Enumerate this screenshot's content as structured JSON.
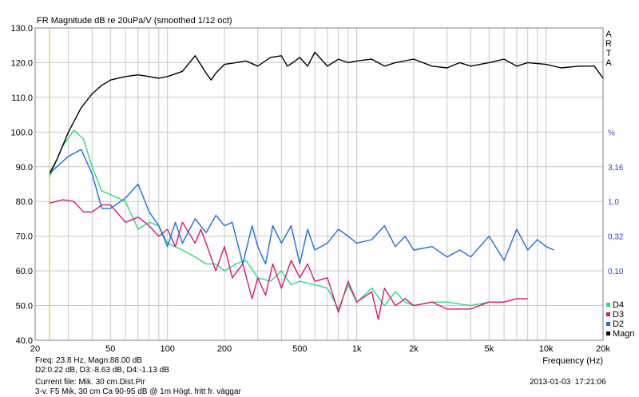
{
  "title": "FR Magnitude dB re 20uPa/V (smoothed 1/12 oct)",
  "brand_letters": [
    "A",
    "R",
    "T",
    "A"
  ],
  "colors": {
    "magn": "#000000",
    "d2": "#1a6fe0",
    "d3": "#e0127a",
    "d4": "#22e07a",
    "right_axis": "#2f3fd0",
    "grid": "#c8c8c8",
    "cursor": "#d8c400"
  },
  "info": {
    "readout": "Freq: 23.8 Hz, Magn:88.00 dB",
    "deltas": "D2:0.22 dB, D3:-8.63 dB, D4:-1.13 dB",
    "current_file": "Current file: Mik. 30 cm.Dist.Pir",
    "description": "3-v. F5 Mik. 30 cm Ca 90-95 dB @ 1m Högt. fritt fr. väggar",
    "timestamp": "2013-01-03  17:21:06"
  },
  "chart_data": {
    "type": "line",
    "title": "FR Magnitude dB re 20uPa/V (smoothed 1/12 oct)",
    "xlabel": "Frequency (Hz)",
    "xscale": "log",
    "xlim": [
      20,
      20000
    ],
    "ylim": [
      40,
      130
    ],
    "grid": true,
    "cursor_freq": 23.8,
    "x_ticks": [
      {
        "value": 20,
        "label": "20"
      },
      {
        "value": 50,
        "label": "50"
      },
      {
        "value": 100,
        "label": "100"
      },
      {
        "value": 200,
        "label": "200"
      },
      {
        "value": 500,
        "label": "500"
      },
      {
        "value": 1000,
        "label": "1k"
      },
      {
        "value": 2000,
        "label": "2k"
      },
      {
        "value": 5000,
        "label": "5k"
      },
      {
        "value": 10000,
        "label": "10k"
      },
      {
        "value": 20000,
        "label": "20k"
      }
    ],
    "y_ticks": [
      {
        "value": 130,
        "label": "130.0"
      },
      {
        "value": 120,
        "label": "120.0"
      },
      {
        "value": 110,
        "label": "110.0"
      },
      {
        "value": 100,
        "label": "100.0"
      },
      {
        "value": 90,
        "label": "90.0"
      },
      {
        "value": 80,
        "label": "80.0"
      },
      {
        "value": 70,
        "label": "70.0"
      },
      {
        "value": 60,
        "label": "60.0"
      },
      {
        "value": 50,
        "label": "50.0"
      },
      {
        "value": 40,
        "label": "40.0"
      }
    ],
    "right_ticks": [
      {
        "at_db": 100,
        "label": "%"
      },
      {
        "at_db": 90,
        "label": "3,16"
      },
      {
        "at_db": 80,
        "label": "1,0"
      },
      {
        "at_db": 70,
        "label": "0,32"
      },
      {
        "at_db": 60,
        "label": "0,10"
      }
    ],
    "legend_position": "bottom-right",
    "series": [
      {
        "name": "D4",
        "key": "d4",
        "x": [
          23.8,
          28,
          32,
          36,
          40,
          45,
          50,
          60,
          70,
          80,
          90,
          100,
          120,
          140,
          160,
          180,
          200,
          230,
          260,
          300,
          350,
          400,
          450,
          500,
          600,
          700,
          800,
          900,
          1000,
          1200,
          1400,
          1600,
          1800,
          2000,
          2500,
          3000,
          4000,
          5000
        ],
        "y": [
          87,
          96,
          100.5,
          98,
          90,
          83,
          82,
          80,
          72,
          74,
          73,
          68,
          66,
          64,
          62,
          62,
          60,
          62,
          63,
          58,
          57,
          60,
          56,
          57,
          56,
          55,
          49,
          56,
          51,
          55,
          50,
          54,
          51,
          50,
          51,
          51,
          50,
          51
        ]
      },
      {
        "name": "D3",
        "key": "d3",
        "x": [
          23.8,
          28,
          32,
          36,
          40,
          45,
          50,
          60,
          70,
          80,
          90,
          100,
          110,
          120,
          140,
          150,
          160,
          180,
          200,
          220,
          250,
          280,
          300,
          330,
          360,
          400,
          450,
          500,
          550,
          600,
          700,
          800,
          900,
          1000,
          1200,
          1300,
          1400,
          1600,
          1800,
          2000,
          2500,
          3000,
          4000,
          5000,
          6000,
          7000,
          8000
        ],
        "y": [
          79.5,
          80.5,
          80,
          77,
          77,
          79,
          79,
          74,
          75.5,
          73,
          70,
          72,
          67,
          74,
          68,
          72,
          68,
          60,
          67,
          58,
          62,
          52,
          58,
          53,
          62,
          55,
          63,
          58,
          62,
          57,
          58,
          48,
          57,
          51,
          54,
          46,
          55,
          50,
          52,
          50,
          51,
          49,
          49,
          51,
          51,
          52,
          52
        ]
      },
      {
        "name": "D2",
        "key": "d2",
        "x": [
          23.8,
          26,
          30,
          35,
          40,
          45,
          50,
          60,
          70,
          80,
          90,
          100,
          110,
          120,
          140,
          160,
          180,
          200,
          220,
          250,
          280,
          300,
          330,
          360,
          400,
          450,
          500,
          550,
          600,
          700,
          800,
          900,
          1000,
          1200,
          1400,
          1600,
          1800,
          2000,
          2500,
          3000,
          3500,
          4000,
          5000,
          6000,
          7000,
          8000,
          9000,
          10000,
          11000
        ],
        "y": [
          88,
          90,
          93,
          95,
          88,
          78,
          78,
          81,
          85,
          77,
          73,
          67,
          74,
          68,
          75,
          71,
          76,
          73,
          74,
          62,
          73,
          67,
          62,
          73,
          68,
          73,
          62,
          72,
          66,
          68,
          72,
          70,
          68,
          69,
          73,
          67,
          70,
          66,
          67,
          64,
          66,
          64,
          70,
          63,
          72,
          66,
          69,
          67,
          66
        ]
      },
      {
        "name": "Magn",
        "key": "magn",
        "x": [
          23.8,
          26,
          30,
          35,
          40,
          45,
          50,
          60,
          70,
          80,
          90,
          100,
          120,
          140,
          160,
          170,
          180,
          200,
          230,
          260,
          300,
          350,
          400,
          430,
          460,
          500,
          550,
          600,
          700,
          800,
          900,
          1000,
          1200,
          1400,
          1600,
          2000,
          2500,
          3000,
          3500,
          4000,
          5000,
          6000,
          7000,
          8000,
          10000,
          12000,
          15000,
          18000,
          20000
        ],
        "y": [
          88,
          92,
          100,
          107,
          111,
          113.5,
          115,
          116,
          116.5,
          116,
          115.5,
          116,
          117.5,
          122,
          117,
          115,
          117,
          119.5,
          120,
          120.5,
          119,
          121.5,
          122,
          119,
          120,
          121.5,
          119,
          123,
          119,
          121,
          120,
          120.5,
          121,
          119,
          120,
          121,
          119,
          118.5,
          120,
          119,
          120,
          121,
          119,
          120,
          119.5,
          118.5,
          119,
          119,
          115.5
        ]
      }
    ]
  }
}
